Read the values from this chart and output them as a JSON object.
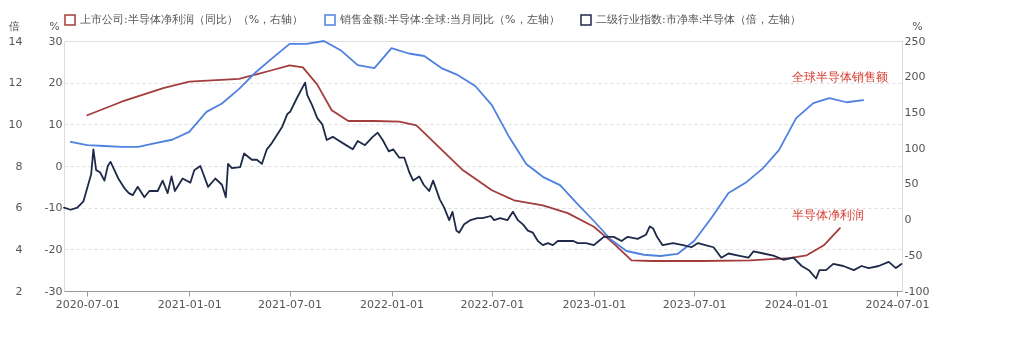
{
  "chart_data": {
    "type": "line",
    "ylabel": "%",
    "y2label": "%",
    "y3label": "倍",
    "legend": "top left",
    "grid": "y",
    "marker": "none",
    "line_style": "solid",
    "xlim": [
      "2020-05-20",
      "2024-07-10"
    ],
    "xticks": [
      "2020-07-01",
      "2021-01-01",
      "2021-07-01",
      "2022-01-01",
      "2022-07-01",
      "2023-01-01",
      "2023-07-01",
      "2024-01-01",
      "2024-07-01"
    ],
    "ylim": [
      -30,
      30
    ],
    "yticks": [
      -30,
      -20,
      -10,
      0,
      10,
      20,
      30
    ],
    "y2lim": [
      -100,
      250
    ],
    "y2ticks": [
      -100,
      -50,
      0,
      50,
      100,
      150,
      200,
      250
    ],
    "y3lim": [
      2,
      14
    ],
    "y3ticks": [
      2,
      4,
      6,
      8,
      10,
      12,
      14
    ],
    "annotations": [
      "全球半导体销售额",
      "半导体净利润"
    ],
    "series": [
      {
        "name": "上市公司:半导体净利润（同比）（%，右轴）",
        "color": "#a33c3c",
        "axis": "y2",
        "x": [
          "2020-07-01",
          "2020-09-01",
          "2020-11-15",
          "2021-01-01",
          "2021-04-01",
          "2021-05-25",
          "2021-07-01",
          "2021-07-25",
          "2021-08-20",
          "2021-09-15",
          "2021-10-15",
          "2021-12-01",
          "2022-01-15",
          "2022-02-15",
          "2022-03-20",
          "2022-05-10",
          "2022-07-01",
          "2022-08-10",
          "2022-10-01",
          "2022-11-15",
          "2023-01-01",
          "2023-02-05",
          "2023-03-10",
          "2023-04-15",
          "2023-07-15",
          "2023-10-10",
          "2023-12-20",
          "2024-01-20",
          "2024-02-20",
          "2024-03-20"
        ],
        "values": [
          146,
          165,
          184,
          193,
          197,
          208,
          216,
          213,
          189,
          153,
          138,
          138,
          137,
          132,
          107,
          69,
          41,
          27,
          20,
          9,
          -10,
          -33,
          -57,
          -58,
          -58,
          -57,
          -54,
          -50,
          -36,
          -12
        ]
      },
      {
        "name": "销售金额:半导体:全球:当月同比（%，左轴）",
        "color": "#4f81e0",
        "x": [
          "2020-06-01",
          "2020-07-01",
          "2020-08-01",
          "2020-09-01",
          "2020-10-01",
          "2020-11-01",
          "2020-12-01",
          "2021-01-01",
          "2021-02-01",
          "2021-03-01",
          "2021-04-01",
          "2021-05-01",
          "2021-06-01",
          "2021-07-01",
          "2021-08-01",
          "2021-09-01",
          "2021-10-01",
          "2021-11-01",
          "2021-12-01",
          "2022-01-01",
          "2022-02-01",
          "2022-03-01",
          "2022-04-01",
          "2022-05-01",
          "2022-06-01",
          "2022-07-01",
          "2022-08-01",
          "2022-09-01",
          "2022-10-01",
          "2022-11-01",
          "2022-12-01",
          "2023-01-01",
          "2023-02-01",
          "2023-03-01",
          "2023-04-01",
          "2023-05-01",
          "2023-06-01",
          "2023-07-01",
          "2023-08-01",
          "2023-09-01",
          "2023-10-01",
          "2023-11-01",
          "2023-12-01",
          "2024-01-01",
          "2024-02-01",
          "2024-03-01",
          "2024-04-01",
          "2024-05-01"
        ],
        "values": [
          5.8,
          5.0,
          4.8,
          4.6,
          4.6,
          5.5,
          6.3,
          8.2,
          13,
          15,
          18.5,
          22.5,
          26,
          29.3,
          29.3,
          30,
          27.8,
          24.2,
          23.5,
          28.3,
          27,
          26.4,
          23.5,
          21.8,
          19.2,
          14.6,
          7,
          0.5,
          -2.6,
          -4.6,
          -8.9,
          -13.2,
          -17.7,
          -20.4,
          -21.3,
          -21.6,
          -21.1,
          -18,
          -12.5,
          -6.5,
          -4.1,
          -0.7,
          3.8,
          11.5,
          15.1,
          16.3,
          15.3,
          15.8
        ]
      },
      {
        "name": "二级行业指数:市净率:半导体（倍，左轴）",
        "color": "#1f2a4a",
        "axis": "y3",
        "x": [
          "2020-05-20",
          "2020-06-01",
          "2020-06-13",
          "2020-06-24",
          "2020-07-08",
          "2020-07-12",
          "2020-07-17",
          "2020-07-24",
          "2020-08-01",
          "2020-08-07",
          "2020-08-12",
          "2020-08-19",
          "2020-08-26",
          "2020-09-07",
          "2020-09-14",
          "2020-09-21",
          "2020-09-30",
          "2020-10-12",
          "2020-10-21",
          "2020-10-27",
          "2020-11-05",
          "2020-11-14",
          "2020-11-23",
          "2020-11-30",
          "2020-12-06",
          "2020-12-20",
          "2021-01-03",
          "2021-01-10",
          "2021-01-21",
          "2021-02-04",
          "2021-02-17",
          "2021-03-01",
          "2021-03-08",
          "2021-03-12",
          "2021-03-19",
          "2021-04-03",
          "2021-04-10",
          "2021-04-24",
          "2021-05-03",
          "2021-05-12",
          "2021-05-21",
          "2021-05-30",
          "2021-06-18",
          "2021-06-27",
          "2021-07-02",
          "2021-07-15",
          "2021-07-29",
          "2021-08-02",
          "2021-08-11",
          "2021-08-20",
          "2021-08-29",
          "2021-09-06",
          "2021-09-17",
          "2021-09-26",
          "2021-10-08",
          "2021-10-23",
          "2021-11-01",
          "2021-11-14",
          "2021-11-28",
          "2021-12-07",
          "2021-12-16",
          "2021-12-27",
          "2022-01-04",
          "2022-01-15",
          "2022-01-24",
          "2022-02-02",
          "2022-02-09",
          "2022-02-20",
          "2022-02-28",
          "2022-03-10",
          "2022-03-17",
          "2022-03-29",
          "2022-04-06",
          "2022-04-15",
          "2022-04-21",
          "2022-04-28",
          "2022-05-03",
          "2022-05-12",
          "2022-05-23",
          "2022-06-05",
          "2022-06-14",
          "2022-06-29",
          "2022-07-05",
          "2022-07-16",
          "2022-07-29",
          "2022-08-08",
          "2022-08-17",
          "2022-08-26",
          "2022-09-04",
          "2022-09-13",
          "2022-09-22",
          "2022-10-01",
          "2022-10-10",
          "2022-10-19",
          "2022-10-28",
          "2022-11-10",
          "2022-11-25",
          "2022-12-03",
          "2022-12-18",
          "2023-01-01",
          "2023-01-10",
          "2023-01-19",
          "2023-02-06",
          "2023-02-20",
          "2023-03-03",
          "2023-03-21",
          "2023-04-05",
          "2023-04-12",
          "2023-04-18",
          "2023-04-25",
          "2023-05-05",
          "2023-05-24",
          "2023-06-11",
          "2023-06-26",
          "2023-07-08",
          "2023-07-21",
          "2023-08-05",
          "2023-08-19",
          "2023-09-01",
          "2023-09-19",
          "2023-10-07",
          "2023-10-16",
          "2023-11-03",
          "2023-11-21",
          "2023-12-09",
          "2023-12-27",
          "2024-01-11",
          "2024-01-24",
          "2024-02-06",
          "2024-02-12",
          "2024-02-24",
          "2024-03-08",
          "2024-03-26",
          "2024-04-14",
          "2024-04-28",
          "2024-05-11",
          "2024-05-29",
          "2024-06-16",
          "2024-06-29",
          "2024-07-09"
        ],
        "values": [
          6.0,
          5.9,
          6.0,
          6.3,
          7.6,
          8.8,
          7.8,
          7.7,
          7.3,
          8.0,
          8.2,
          7.8,
          7.4,
          6.9,
          6.7,
          6.6,
          7.0,
          6.5,
          6.8,
          6.8,
          6.8,
          7.3,
          6.7,
          7.5,
          6.8,
          7.4,
          7.2,
          7.8,
          8.0,
          7.0,
          7.4,
          7.1,
          6.5,
          8.1,
          7.9,
          7.95,
          8.6,
          8.3,
          8.3,
          8.1,
          8.8,
          9.1,
          9.9,
          10.5,
          10.6,
          11.3,
          12.0,
          11.4,
          10.9,
          10.3,
          10.0,
          9.25,
          9.4,
          9.25,
          9.05,
          8.8,
          9.2,
          9.0,
          9.4,
          9.6,
          9.25,
          8.7,
          8.8,
          8.4,
          8.4,
          7.7,
          7.3,
          7.5,
          7.1,
          6.8,
          7.3,
          6.4,
          6.0,
          5.4,
          5.8,
          4.9,
          4.8,
          5.2,
          5.4,
          5.5,
          5.5,
          5.6,
          5.4,
          5.5,
          5.4,
          5.8,
          5.4,
          5.2,
          4.9,
          4.8,
          4.4,
          4.2,
          4.3,
          4.2,
          4.4,
          4.4,
          4.4,
          4.3,
          4.3,
          4.2,
          4.4,
          4.6,
          4.6,
          4.4,
          4.6,
          4.5,
          4.7,
          5.1,
          5.0,
          4.6,
          4.2,
          4.3,
          4.2,
          4.1,
          4.3,
          4.2,
          4.1,
          3.6,
          3.8,
          3.7,
          3.6,
          3.9,
          3.8,
          3.7,
          3.5,
          3.6,
          3.2,
          3.0,
          2.6,
          3.0,
          3.0,
          3.3,
          3.2,
          3.0,
          3.2,
          3.1,
          3.2,
          3.4,
          3.1,
          3.3
        ]
      }
    ]
  }
}
